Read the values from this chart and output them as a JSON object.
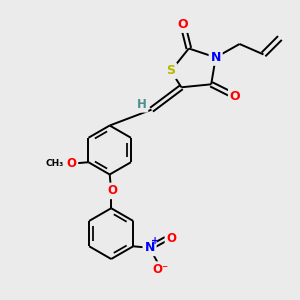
{
  "bg_color": "#ebebeb",
  "atom_colors": {
    "S": "#b8b800",
    "N": "#0000ff",
    "O": "#ff0000",
    "C": "#000000",
    "H": "#4a9090"
  },
  "bond_color": "#000000",
  "bond_width": 1.4,
  "figsize": [
    3.0,
    3.0
  ],
  "dpi": 100
}
